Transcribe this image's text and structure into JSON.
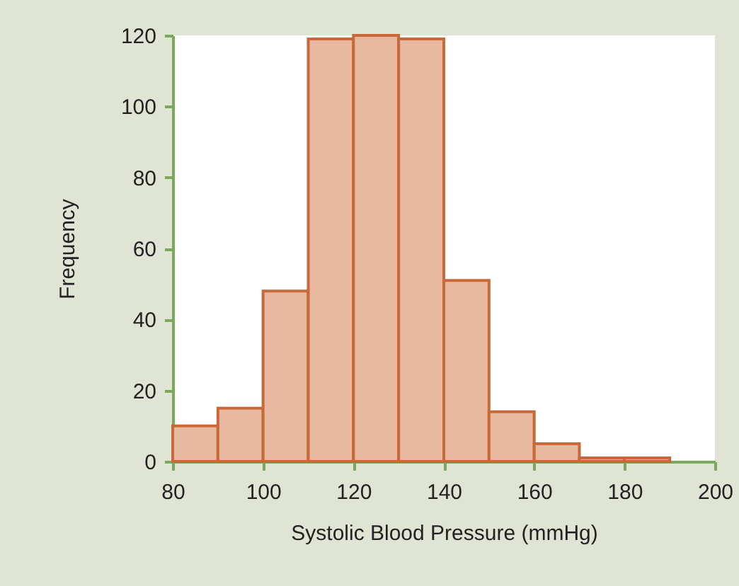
{
  "chart_data": {
    "type": "histogram",
    "xlabel": "Systolic Blood Pressure (mmHg)",
    "ylabel": "Frequency",
    "bins": [
      80,
      90,
      100,
      110,
      120,
      130,
      140,
      150,
      160,
      170,
      180,
      190
    ],
    "values": [
      10,
      15,
      48,
      119,
      120,
      119,
      51,
      14,
      5,
      1,
      1
    ],
    "color": "#e8b9a0",
    "xlim": [
      80,
      200
    ],
    "xticks": [
      80,
      100,
      120,
      140,
      160,
      180,
      200
    ],
    "ylim": [
      0,
      120
    ],
    "yticks": [
      0,
      20,
      40,
      60,
      80,
      100,
      120
    ],
    "grid": false
  }
}
